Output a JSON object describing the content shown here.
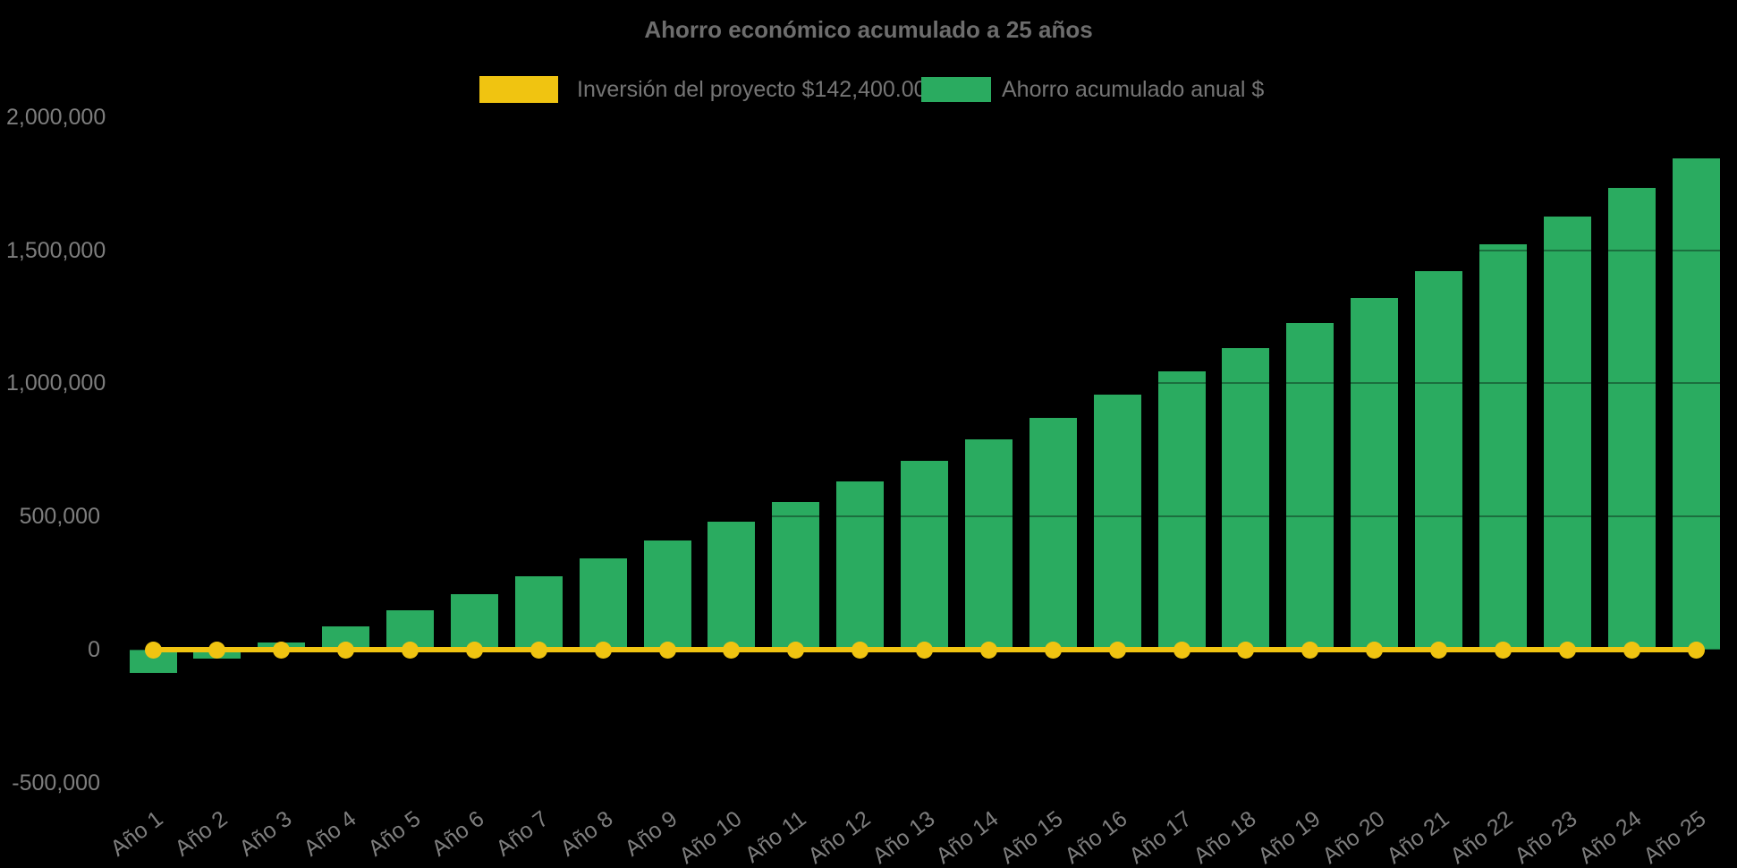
{
  "page": {
    "background_color": "#000000"
  },
  "chart_data": {
    "type": "bar",
    "title": "Ahorro económico acumulado a 25 años",
    "title_color": "#6D6D6D",
    "xlabel": "",
    "ylabel": "",
    "grid": false,
    "legend_position": "top",
    "axis_label_color": "#7E7E7E",
    "ylim": [
      -500000,
      2000000
    ],
    "yticks": [
      {
        "label": "2,000,000",
        "value": 2000000
      },
      {
        "label": "1,500,000",
        "value": 1500000
      },
      {
        "label": "1,000,000",
        "value": 1000000
      },
      {
        "label": "500,000",
        "value": 500000
      },
      {
        "label": "0",
        "value": 0
      },
      {
        "label": "-500,000",
        "value": -500000
      }
    ],
    "categories": [
      "Año 1",
      "Año 2",
      "Año 3",
      "Año 4",
      "Año 5",
      "Año 6",
      "Año 7",
      "Año 8",
      "Año 9",
      "Año 10",
      "Año 11",
      "Año 12",
      "Año 13",
      "Año 14",
      "Año 15",
      "Año 16",
      "Año 17",
      "Año 18",
      "Año 19",
      "Año 20",
      "Año 21",
      "Año 22",
      "Año 23",
      "Año 24",
      "Año 25"
    ],
    "series": [
      {
        "name": "Inversión del proyecto $142,400.00",
        "type": "line",
        "color": "#F0C411",
        "investment_amount_shown_in_label": 142400,
        "values": [
          0,
          0,
          0,
          0,
          0,
          0,
          0,
          0,
          0,
          0,
          0,
          0,
          0,
          0,
          0,
          0,
          0,
          0,
          0,
          0,
          0,
          0,
          0,
          0,
          0
        ]
      },
      {
        "name": "Ahorro acumulado anual $",
        "type": "bar",
        "color": "#2AAB60",
        "values": [
          -88000,
          -32000,
          26000,
          86000,
          147000,
          210000,
          275000,
          342000,
          411000,
          482000,
          556000,
          631000,
          709000,
          789000,
          871000,
          956000,
          1044000,
          1134000,
          1226000,
          1322000,
          1420000,
          1522000,
          1626000,
          1734000,
          1845000
        ]
      }
    ]
  }
}
